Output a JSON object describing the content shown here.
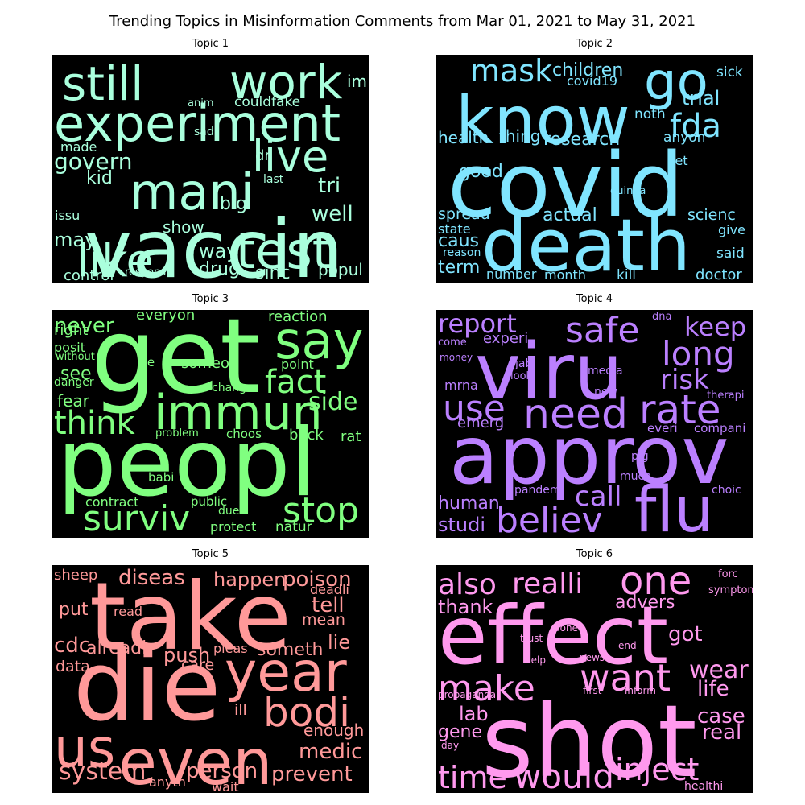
{
  "figure": {
    "title": "Trending Topics in Misinformation Comments from Mar 01, 2021 to May 31, 2021"
  },
  "chart_data": [
    {
      "type": "wordcloud",
      "title": "Topic 1",
      "color": "#AAFFDD",
      "words": [
        {
          "text": "vaccin",
          "weight": 1.0
        },
        {
          "text": "experiment",
          "weight": 0.85
        },
        {
          "text": "mani",
          "weight": 0.78
        },
        {
          "text": "like",
          "weight": 0.75
        },
        {
          "text": "test",
          "weight": 0.73
        },
        {
          "text": "still",
          "weight": 0.7
        },
        {
          "text": "work",
          "weight": 0.68
        },
        {
          "text": "live",
          "weight": 0.65
        },
        {
          "text": "govern",
          "weight": 0.35
        },
        {
          "text": "tri",
          "weight": 0.33
        },
        {
          "text": "well",
          "weight": 0.32
        },
        {
          "text": "way",
          "weight": 0.3
        },
        {
          "text": "may",
          "weight": 0.28
        },
        {
          "text": "kid",
          "weight": 0.27
        },
        {
          "text": "drug",
          "weight": 0.26
        },
        {
          "text": "sinc",
          "weight": 0.25
        },
        {
          "text": "popul",
          "weight": 0.24
        },
        {
          "text": "show",
          "weight": 0.23
        },
        {
          "text": "big",
          "weight": 0.23
        },
        {
          "text": "control",
          "weight": 0.22
        },
        {
          "text": "couldfake",
          "weight": 0.21
        },
        {
          "text": "im",
          "weight": 0.2
        },
        {
          "text": "dr",
          "weight": 0.19
        },
        {
          "text": "made",
          "weight": 0.18
        },
        {
          "text": "issu",
          "weight": 0.17
        },
        {
          "text": "sad",
          "weight": 0.15
        },
        {
          "text": "anim",
          "weight": 0.14
        },
        {
          "text": "last",
          "weight": 0.14
        },
        {
          "text": "respons",
          "weight": 0.13
        }
      ]
    },
    {
      "type": "wordcloud",
      "title": "Topic 2",
      "color": "#80E5FF",
      "words": [
        {
          "text": "covid",
          "weight": 1.0
        },
        {
          "text": "death",
          "weight": 0.9
        },
        {
          "text": "know",
          "weight": 0.85
        },
        {
          "text": "go",
          "weight": 0.7
        },
        {
          "text": "fda",
          "weight": 0.45
        },
        {
          "text": "mask",
          "weight": 0.42
        },
        {
          "text": "children",
          "weight": 0.33
        },
        {
          "text": "trial",
          "weight": 0.3
        },
        {
          "text": "good",
          "weight": 0.29
        },
        {
          "text": "research",
          "weight": 0.28
        },
        {
          "text": "caus",
          "weight": 0.27
        },
        {
          "text": "actual",
          "weight": 0.26
        },
        {
          "text": "term",
          "weight": 0.26
        },
        {
          "text": "health",
          "weight": 0.25
        },
        {
          "text": "thing",
          "weight": 0.24
        },
        {
          "text": "spread",
          "weight": 0.23
        },
        {
          "text": "scienc",
          "weight": 0.23
        },
        {
          "text": "covid19",
          "weight": 0.21
        },
        {
          "text": "noth",
          "weight": 0.21
        },
        {
          "text": "anyon",
          "weight": 0.21
        },
        {
          "text": "sick",
          "weight": 0.21
        },
        {
          "text": "kill",
          "weight": 0.21
        },
        {
          "text": "doctor",
          "weight": 0.21
        },
        {
          "text": "let",
          "weight": 0.19
        },
        {
          "text": "state",
          "weight": 0.18
        },
        {
          "text": "give",
          "weight": 0.18
        },
        {
          "text": "said",
          "weight": 0.18
        },
        {
          "text": "number",
          "weight": 0.18
        },
        {
          "text": "month",
          "weight": 0.18
        },
        {
          "text": "reason",
          "weight": 0.15
        },
        {
          "text": "guinea",
          "weight": 0.14
        }
      ]
    },
    {
      "type": "wordcloud",
      "title": "Topic 3",
      "color": "#80FF80",
      "words": [
        {
          "text": "peopl",
          "weight": 1.0
        },
        {
          "text": "get",
          "weight": 0.95
        },
        {
          "text": "say",
          "weight": 0.55
        },
        {
          "text": "immun",
          "weight": 0.5
        },
        {
          "text": "think",
          "weight": 0.38
        },
        {
          "text": "stop",
          "weight": 0.36
        },
        {
          "text": "surviv",
          "weight": 0.35
        },
        {
          "text": "fact",
          "weight": 0.33
        },
        {
          "text": "side",
          "weight": 0.28
        },
        {
          "text": "never",
          "weight": 0.25
        },
        {
          "text": "see",
          "weight": 0.22
        },
        {
          "text": "fear",
          "weight": 0.2
        },
        {
          "text": "everyon",
          "weight": 0.2
        },
        {
          "text": "right",
          "weight": 0.2
        },
        {
          "text": "someon",
          "weight": 0.19
        },
        {
          "text": "reaction",
          "weight": 0.19
        },
        {
          "text": "back",
          "weight": 0.19
        },
        {
          "text": "rat",
          "weight": 0.19
        },
        {
          "text": "posit",
          "weight": 0.18
        },
        {
          "text": "contract",
          "weight": 0.18
        },
        {
          "text": "protect",
          "weight": 0.18
        },
        {
          "text": "natur",
          "weight": 0.18
        },
        {
          "text": "point",
          "weight": 0.17
        },
        {
          "text": "choos",
          "weight": 0.16
        },
        {
          "text": "babi",
          "weight": 0.16
        },
        {
          "text": "public",
          "weight": 0.16
        },
        {
          "text": "danger",
          "weight": 0.15
        },
        {
          "text": "chang",
          "weight": 0.15
        },
        {
          "text": "problem",
          "weight": 0.14
        },
        {
          "text": "ye",
          "weight": 0.14
        },
        {
          "text": "due",
          "weight": 0.14
        },
        {
          "text": "without",
          "weight": 0.13
        }
      ]
    },
    {
      "type": "wordcloud",
      "title": "Topic 4",
      "color": "#BB80FF",
      "words": [
        {
          "text": "approv",
          "weight": 1.0
        },
        {
          "text": "viru",
          "weight": 0.9
        },
        {
          "text": "flu",
          "weight": 0.6
        },
        {
          "text": "need",
          "weight": 0.48
        },
        {
          "text": "rate",
          "weight": 0.45
        },
        {
          "text": "safe",
          "weight": 0.42
        },
        {
          "text": "use",
          "weight": 0.4
        },
        {
          "text": "believ",
          "weight": 0.38
        },
        {
          "text": "long",
          "weight": 0.36
        },
        {
          "text": "report",
          "weight": 0.33
        },
        {
          "text": "risk",
          "weight": 0.33
        },
        {
          "text": "keep",
          "weight": 0.3
        },
        {
          "text": "call",
          "weight": 0.3
        },
        {
          "text": "human",
          "weight": 0.24
        },
        {
          "text": "studi",
          "weight": 0.24
        },
        {
          "text": "experi",
          "weight": 0.19
        },
        {
          "text": "mrna",
          "weight": 0.18
        },
        {
          "text": "emerg",
          "weight": 0.18
        },
        {
          "text": "media",
          "weight": 0.15
        },
        {
          "text": "new",
          "weight": 0.14
        },
        {
          "text": "everi",
          "weight": 0.15
        },
        {
          "text": "compani",
          "weight": 0.15
        },
        {
          "text": "pig",
          "weight": 0.14
        },
        {
          "text": "much",
          "weight": 0.14
        },
        {
          "text": "pandem",
          "weight": 0.14
        },
        {
          "text": "choic",
          "weight": 0.15
        },
        {
          "text": "therapi",
          "weight": 0.13
        },
        {
          "text": "jab",
          "weight": 0.14
        },
        {
          "text": "look",
          "weight": 0.13
        },
        {
          "text": "come",
          "weight": 0.13
        },
        {
          "text": "money",
          "weight": 0.13
        },
        {
          "text": "dna",
          "weight": 0.13
        }
      ]
    },
    {
      "type": "wordcloud",
      "title": "Topic 5",
      "color": "#FF9999",
      "words": [
        {
          "text": "die",
          "weight": 1.0
        },
        {
          "text": "take",
          "weight": 0.9
        },
        {
          "text": "even",
          "weight": 0.72
        },
        {
          "text": "year",
          "weight": 0.62
        },
        {
          "text": "us",
          "weight": 0.6
        },
        {
          "text": "bodi",
          "weight": 0.48
        },
        {
          "text": "poison",
          "weight": 0.28
        },
        {
          "text": "happen",
          "weight": 0.27
        },
        {
          "text": "diseas",
          "weight": 0.27
        },
        {
          "text": "tell",
          "weight": 0.26
        },
        {
          "text": "push",
          "weight": 0.26
        },
        {
          "text": "someth",
          "weight": 0.24
        },
        {
          "text": "lie",
          "weight": 0.24
        },
        {
          "text": "system",
          "weight": 0.3
        },
        {
          "text": "person",
          "weight": 0.26
        },
        {
          "text": "prevent",
          "weight": 0.27
        },
        {
          "text": "medic",
          "weight": 0.26
        },
        {
          "text": "enough",
          "weight": 0.21
        },
        {
          "text": "cdc",
          "weight": 0.25
        },
        {
          "text": "alreadi",
          "weight": 0.22
        },
        {
          "text": "put",
          "weight": 0.22
        },
        {
          "text": "data",
          "weight": 0.2
        },
        {
          "text": "care",
          "weight": 0.2
        },
        {
          "text": "mean",
          "weight": 0.19
        },
        {
          "text": "ill",
          "weight": 0.19
        },
        {
          "text": "sheep",
          "weight": 0.19
        },
        {
          "text": "read",
          "weight": 0.17
        },
        {
          "text": "pleas",
          "weight": 0.17
        },
        {
          "text": "deadli",
          "weight": 0.16
        },
        {
          "text": "anyth",
          "weight": 0.16
        },
        {
          "text": "wait",
          "weight": 0.16
        }
      ]
    },
    {
      "type": "wordcloud",
      "title": "Topic 6",
      "color": "#FF99EE",
      "words": [
        {
          "text": "shot",
          "weight": 1.0
        },
        {
          "text": "effect",
          "weight": 0.9
        },
        {
          "text": "one",
          "weight": 0.5
        },
        {
          "text": "want",
          "weight": 0.42
        },
        {
          "text": "make",
          "weight": 0.42
        },
        {
          "text": "would",
          "weight": 0.38
        },
        {
          "text": "inject",
          "weight": 0.36
        },
        {
          "text": "time",
          "weight": 0.33
        },
        {
          "text": "also",
          "weight": 0.33
        },
        {
          "text": "realli",
          "weight": 0.33
        },
        {
          "text": "wear",
          "weight": 0.27
        },
        {
          "text": "life",
          "weight": 0.25
        },
        {
          "text": "case",
          "weight": 0.25
        },
        {
          "text": "real",
          "weight": 0.25
        },
        {
          "text": "got",
          "weight": 0.25
        },
        {
          "text": "thank",
          "weight": 0.25
        },
        {
          "text": "advers",
          "weight": 0.23
        },
        {
          "text": "lab",
          "weight": 0.23
        },
        {
          "text": "gene",
          "weight": 0.22
        },
        {
          "text": "healthi",
          "weight": 0.16
        },
        {
          "text": "done",
          "weight": 0.13
        },
        {
          "text": "forc",
          "weight": 0.13
        },
        {
          "text": "symptom",
          "weight": 0.13
        },
        {
          "text": "trust",
          "weight": 0.13
        },
        {
          "text": "end",
          "weight": 0.13
        },
        {
          "text": "help",
          "weight": 0.13
        },
        {
          "text": "news",
          "weight": 0.13
        },
        {
          "text": "propaganda",
          "weight": 0.13
        },
        {
          "text": "first",
          "weight": 0.13
        },
        {
          "text": "inform",
          "weight": 0.13
        },
        {
          "text": "day",
          "weight": 0.12
        }
      ]
    }
  ]
}
